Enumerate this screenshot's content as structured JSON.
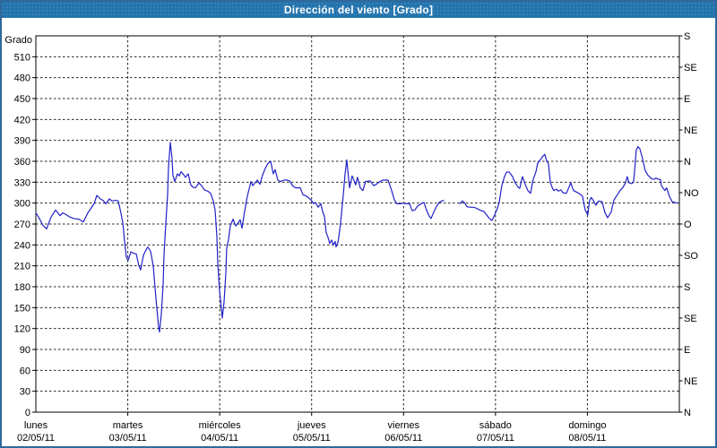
{
  "window": {
    "title": "Dirección del viento [Grado]"
  },
  "colors": {
    "titlebar_bg": "#2373ac",
    "titlebar_text": "#ffffff",
    "window_border": "#31689b",
    "line": "#2121c8",
    "grid": "#222222",
    "frame": "#000000"
  },
  "chart_data": {
    "type": "line",
    "title": "Dirección del viento [Grado]",
    "ylabel": "Grado",
    "xlabel": "",
    "ylim": [
      0,
      540
    ],
    "xlim_days": [
      0,
      7
    ],
    "grid": "dashed, every 30 degrees horizontal, every day vertical",
    "legend_position": "none",
    "line_color": "#2121c8",
    "left_ticks": [
      0,
      30,
      60,
      90,
      120,
      150,
      180,
      210,
      240,
      270,
      300,
      330,
      360,
      390,
      420,
      450,
      480,
      510
    ],
    "right_axis": [
      {
        "label": "S",
        "deg": 540
      },
      {
        "label": "SE",
        "deg": 495
      },
      {
        "label": "E",
        "deg": 450
      },
      {
        "label": "NE",
        "deg": 405
      },
      {
        "label": "N",
        "deg": 360
      },
      {
        "label": "NO",
        "deg": 315
      },
      {
        "label": "O",
        "deg": 270
      },
      {
        "label": "SO",
        "deg": 225
      },
      {
        "label": "S",
        "deg": 180
      },
      {
        "label": "SE",
        "deg": 135
      },
      {
        "label": "E",
        "deg": 90
      },
      {
        "label": "NE",
        "deg": 45
      },
      {
        "label": "N",
        "deg": 0
      }
    ],
    "x_days": [
      {
        "name": "lunes",
        "date": "02/05/11"
      },
      {
        "name": "martes",
        "date": "03/05/11"
      },
      {
        "name": "miércoles",
        "date": "04/05/11"
      },
      {
        "name": "jueves",
        "date": "05/05/11"
      },
      {
        "name": "viernes",
        "date": "06/05/11"
      },
      {
        "name": "sábado",
        "date": "07/05/11"
      },
      {
        "name": "domingo",
        "date": "08/05/11"
      }
    ],
    "series": [
      {
        "name": "Dirección del viento",
        "unit": "Grado",
        "note": "t in days since lunes 02/05/11 00:00; gap (missing data) between segments on viernes",
        "segments": [
          [
            [
              0,
              286
            ],
            [
              0.029,
              280
            ],
            [
              0.078,
              268
            ],
            [
              0.117,
              263
            ],
            [
              0.166,
              280
            ],
            [
              0.214,
              290
            ],
            [
              0.263,
              282
            ],
            [
              0.292,
              286
            ],
            [
              0.322,
              284
            ],
            [
              0.37,
              280
            ],
            [
              0.409,
              278
            ],
            [
              0.468,
              277
            ],
            [
              0.517,
              273
            ],
            [
              0.565,
              286
            ],
            [
              0.634,
              299
            ],
            [
              0.663,
              311
            ],
            [
              0.702,
              306
            ],
            [
              0.731,
              304
            ],
            [
              0.76,
              299
            ],
            [
              0.799,
              306
            ],
            [
              0.829,
              303
            ],
            [
              0.868,
              304
            ],
            [
              0.897,
              303
            ],
            [
              0.926,
              285
            ],
            [
              0.946,
              272
            ],
            [
              0.965,
              245
            ],
            [
              0.985,
              222
            ],
            [
              1.004,
              218
            ],
            [
              1.033,
              230
            ],
            [
              1.063,
              228
            ],
            [
              1.092,
              227
            ],
            [
              1.121,
              210
            ],
            [
              1.14,
              204
            ],
            [
              1.17,
              225
            ],
            [
              1.199,
              233
            ],
            [
              1.218,
              237
            ],
            [
              1.248,
              231
            ],
            [
              1.277,
              210
            ],
            [
              1.296,
              180
            ],
            [
              1.316,
              149
            ],
            [
              1.335,
              123
            ],
            [
              1.345,
              115
            ],
            [
              1.365,
              141
            ],
            [
              1.384,
              183
            ],
            [
              1.394,
              226
            ],
            [
              1.413,
              269
            ],
            [
              1.433,
              312
            ],
            [
              1.443,
              351
            ],
            [
              1.462,
              387
            ],
            [
              1.482,
              364
            ],
            [
              1.491,
              340
            ],
            [
              1.511,
              331
            ],
            [
              1.54,
              342
            ],
            [
              1.56,
              339
            ],
            [
              1.579,
              345
            ],
            [
              1.608,
              341
            ],
            [
              1.628,
              337
            ],
            [
              1.657,
              342
            ],
            [
              1.686,
              326
            ],
            [
              1.706,
              323
            ],
            [
              1.735,
              322
            ],
            [
              1.774,
              329
            ],
            [
              1.803,
              325
            ],
            [
              1.833,
              319
            ],
            [
              1.872,
              317
            ],
            [
              1.901,
              314
            ],
            [
              1.93,
              303
            ],
            [
              1.95,
              290
            ],
            [
              1.969,
              252
            ],
            [
              1.979,
              213
            ],
            [
              1.998,
              175
            ],
            [
              2.018,
              149
            ],
            [
              2.028,
              135
            ],
            [
              2.047,
              158
            ],
            [
              2.067,
              200
            ],
            [
              2.076,
              235
            ],
            [
              2.096,
              248
            ],
            [
              2.115,
              267
            ],
            [
              2.145,
              277
            ],
            [
              2.174,
              267
            ],
            [
              2.203,
              272
            ],
            [
              2.223,
              276
            ],
            [
              2.242,
              264
            ],
            [
              2.271,
              288
            ],
            [
              2.301,
              310
            ],
            [
              2.34,
              331
            ],
            [
              2.359,
              325
            ],
            [
              2.408,
              333
            ],
            [
              2.437,
              327
            ],
            [
              2.466,
              340
            ],
            [
              2.496,
              350
            ],
            [
              2.525,
              357
            ],
            [
              2.554,
              360
            ],
            [
              2.583,
              342
            ],
            [
              2.603,
              348
            ],
            [
              2.632,
              333
            ],
            [
              2.661,
              331
            ],
            [
              2.7,
              333
            ],
            [
              2.73,
              333
            ],
            [
              2.759,
              332
            ],
            [
              2.798,
              324
            ],
            [
              2.827,
              322
            ],
            [
              2.876,
              322
            ],
            [
              2.905,
              312
            ],
            [
              2.944,
              310
            ],
            [
              2.973,
              307
            ],
            [
              3.003,
              303
            ],
            [
              3.022,
              299
            ],
            [
              3.042,
              301
            ],
            [
              3.071,
              294
            ],
            [
              3.1,
              299
            ],
            [
              3.119,
              288
            ],
            [
              3.139,
              281
            ],
            [
              3.158,
              258
            ],
            [
              3.178,
              251
            ],
            [
              3.197,
              242
            ],
            [
              3.217,
              247
            ],
            [
              3.236,
              240
            ],
            [
              3.256,
              245
            ],
            [
              3.265,
              237
            ],
            [
              3.285,
              243
            ],
            [
              3.295,
              251
            ],
            [
              3.314,
              270
            ],
            [
              3.343,
              310
            ],
            [
              3.363,
              340
            ],
            [
              3.382,
              362
            ],
            [
              3.412,
              322
            ],
            [
              3.441,
              339
            ],
            [
              3.48,
              326
            ],
            [
              3.499,
              337
            ],
            [
              3.529,
              322
            ],
            [
              3.558,
              318
            ],
            [
              3.587,
              331
            ],
            [
              3.636,
              332
            ],
            [
              3.675,
              325
            ],
            [
              3.704,
              327
            ],
            [
              3.733,
              330
            ],
            [
              3.772,
              333
            ],
            [
              3.831,
              333
            ],
            [
              3.87,
              318
            ],
            [
              3.899,
              305
            ],
            [
              3.928,
              299
            ],
            [
              3.967,
              299
            ],
            [
              3.997,
              300
            ],
            [
              4.026,
              299
            ],
            [
              4.065,
              299
            ],
            [
              4.094,
              289
            ],
            [
              4.123,
              290
            ],
            [
              4.153,
              296
            ],
            [
              4.192,
              299
            ],
            [
              4.221,
              301
            ],
            [
              4.25,
              290
            ],
            [
              4.279,
              281
            ],
            [
              4.299,
              278
            ],
            [
              4.328,
              287
            ],
            [
              4.357,
              295
            ],
            [
              4.387,
              301
            ],
            [
              4.416,
              303
            ],
            [
              4.435,
              304
            ]
          ],
          [
            [
              4.611,
              299
            ],
            [
              4.64,
              303
            ],
            [
              4.66,
              301
            ],
            [
              4.689,
              295
            ],
            [
              4.728,
              294
            ],
            [
              4.757,
              294
            ],
            [
              4.786,
              293
            ],
            [
              4.816,
              291
            ],
            [
              4.845,
              289
            ],
            [
              4.874,
              288
            ],
            [
              4.903,
              283
            ],
            [
              4.933,
              278
            ],
            [
              4.962,
              275
            ],
            [
              4.991,
              283
            ],
            [
              5.02,
              292
            ],
            [
              5.04,
              301
            ],
            [
              5.069,
              325
            ],
            [
              5.098,
              338
            ],
            [
              5.118,
              344
            ],
            [
              5.147,
              345
            ],
            [
              5.186,
              338
            ],
            [
              5.215,
              329
            ],
            [
              5.245,
              323
            ],
            [
              5.264,
              321
            ],
            [
              5.293,
              338
            ],
            [
              5.323,
              327
            ],
            [
              5.352,
              318
            ],
            [
              5.381,
              314
            ],
            [
              5.41,
              334
            ],
            [
              5.44,
              345
            ],
            [
              5.459,
              357
            ],
            [
              5.488,
              362
            ],
            [
              5.508,
              366
            ],
            [
              5.537,
              370
            ],
            [
              5.557,
              360
            ],
            [
              5.576,
              357
            ],
            [
              5.596,
              330
            ],
            [
              5.615,
              323
            ],
            [
              5.634,
              318
            ],
            [
              5.664,
              320
            ],
            [
              5.683,
              317
            ],
            [
              5.712,
              319
            ],
            [
              5.732,
              315
            ],
            [
              5.771,
              314
            ],
            [
              5.8,
              323
            ],
            [
              5.819,
              329
            ],
            [
              5.849,
              318
            ],
            [
              5.878,
              316
            ],
            [
              5.907,
              314
            ],
            [
              5.946,
              310
            ],
            [
              5.975,
              290
            ],
            [
              6.004,
              283
            ],
            [
              6.024,
              304
            ],
            [
              6.043,
              308
            ],
            [
              6.063,
              304
            ],
            [
              6.092,
              297
            ],
            [
              6.121,
              303
            ],
            [
              6.16,
              302
            ],
            [
              6.189,
              287
            ],
            [
              6.219,
              279
            ],
            [
              6.258,
              287
            ],
            [
              6.287,
              304
            ],
            [
              6.316,
              310
            ],
            [
              6.355,
              318
            ],
            [
              6.384,
              322
            ],
            [
              6.414,
              329
            ],
            [
              6.433,
              338
            ],
            [
              6.453,
              329
            ],
            [
              6.482,
              328
            ],
            [
              6.501,
              330
            ],
            [
              6.511,
              342
            ],
            [
              6.531,
              376
            ],
            [
              6.55,
              381
            ],
            [
              6.57,
              378
            ],
            [
              6.599,
              364
            ],
            [
              6.628,
              347
            ],
            [
              6.658,
              340
            ],
            [
              6.697,
              335
            ],
            [
              6.726,
              334
            ],
            [
              6.745,
              336
            ],
            [
              6.774,
              334
            ],
            [
              6.794,
              334
            ],
            [
              6.804,
              325
            ],
            [
              6.843,
              318
            ],
            [
              6.862,
              322
            ],
            [
              6.891,
              310
            ],
            [
              6.921,
              302
            ],
            [
              6.95,
              301
            ],
            [
              6.979,
              300
            ]
          ]
        ]
      }
    ]
  }
}
